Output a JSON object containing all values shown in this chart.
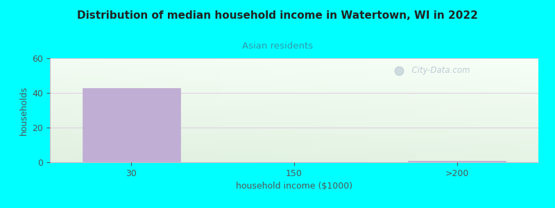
{
  "title": "Distribution of median household income in Watertown, WI in 2022",
  "subtitle": "Asian residents",
  "xlabel": "household income ($1000)",
  "ylabel": "households",
  "background_color": "#00ffff",
  "bar_labels": [
    "30",
    "150",
    ">200"
  ],
  "bar_values": [
    43,
    0,
    1
  ],
  "bar_color": "#c0aed4",
  "bar_edge_color": "#c0aed4",
  "ylim": [
    0,
    60
  ],
  "yticks": [
    0,
    20,
    40,
    60
  ],
  "title_fontsize": 11,
  "subtitle_color": "#3399aa",
  "subtitle_fontsize": 9.5,
  "xlabel_fontsize": 9,
  "ylabel_fontsize": 9,
  "tick_color": "#555555",
  "watermark": "  City-Data.com",
  "plot_bg_top_left": "#ddeedd",
  "plot_bg_bottom_right": "#f8fff8",
  "grid_color": "#ddccdd",
  "spine_color": "#ccbbcc"
}
